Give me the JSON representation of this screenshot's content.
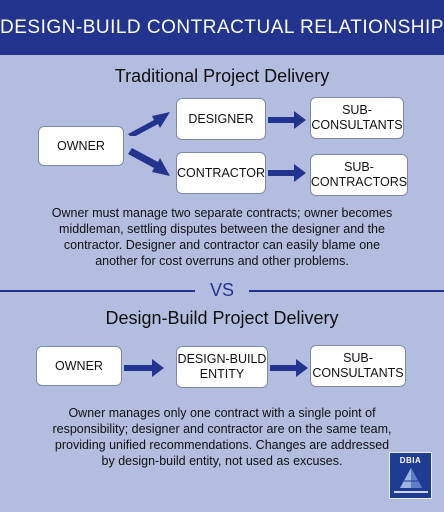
{
  "header": {
    "title": "DESIGN-BUILD CONTRACTUAL RELATIONSHIP"
  },
  "traditional": {
    "title": "Traditional Project Delivery",
    "owner": "OWNER",
    "designer": "DESIGNER",
    "contractor": "CONTRACTOR",
    "sub_consultants": [
      "SUB-",
      "CONSULTANTS"
    ],
    "sub_contractors": [
      "SUB-",
      "CONTRACTORS"
    ],
    "description": [
      "Owner must manage two separate contracts; owner becomes",
      "middleman, settling disputes between the designer and the",
      "contractor. Designer and contractor can easily blame one",
      "another for cost overruns and other problems."
    ]
  },
  "vs_label": "VS",
  "design_build": {
    "title": "Design-Build Project Delivery",
    "owner": "OWNER",
    "entity": [
      "DESIGN-BUILD",
      "ENTITY"
    ],
    "sub_consultants": [
      "SUB-",
      "CONSULTANTS"
    ],
    "description": [
      "Owner manages only one contract with a single point of",
      "responsibility; designer and contractor are on the same team,",
      "providing unified recommendations. Changes are addressed",
      "by design-build entity, not used as excuses."
    ]
  },
  "logo": {
    "text": "DBIA"
  },
  "colors": {
    "banner": "#23348f",
    "background": "#b3bde0",
    "arrow": "#23348f",
    "box": "#ffffff"
  }
}
